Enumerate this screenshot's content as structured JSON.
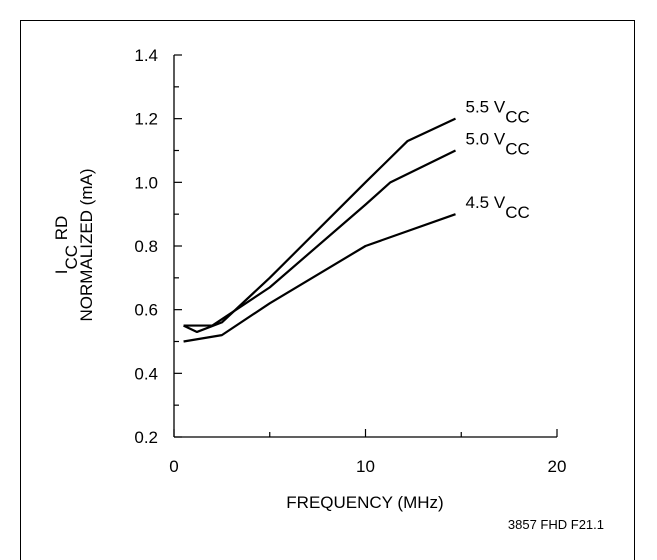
{
  "chart_data": {
    "type": "line",
    "title": "",
    "xlabel": "FREQUENCY (MHz)",
    "ylabel_line1": "I",
    "ylabel_line1_sub": "CC",
    "ylabel_line1_suffix": " RD",
    "ylabel_line2": "NORMALIZED (mA)",
    "xlim": [
      0,
      20
    ],
    "ylim": [
      0.2,
      1.4
    ],
    "x_ticks": [
      "0",
      "10",
      "20"
    ],
    "y_ticks": [
      "0.2",
      "0.4",
      "0.6",
      "0.8",
      "1.0",
      "1.2",
      "1.4"
    ],
    "grid": false,
    "series": [
      {
        "name": "5.5 V",
        "name_sub": "CC",
        "x": [
          0.5,
          1.2,
          2.5,
          5,
          10,
          12.2,
          14.7
        ],
        "y": [
          0.55,
          0.53,
          0.56,
          0.7,
          1.0,
          1.13,
          1.2
        ]
      },
      {
        "name": "5.0 V",
        "name_sub": "CC",
        "x": [
          0.5,
          2,
          5,
          10,
          11.3,
          14.7
        ],
        "y": [
          0.55,
          0.55,
          0.67,
          0.93,
          1.0,
          1.1
        ]
      },
      {
        "name": "4.5 V",
        "name_sub": "CC",
        "x": [
          0.5,
          2.5,
          5,
          10,
          14.7
        ],
        "y": [
          0.5,
          0.52,
          0.62,
          0.8,
          0.9
        ]
      }
    ]
  },
  "figure_code": "3857 FHD F21.1"
}
